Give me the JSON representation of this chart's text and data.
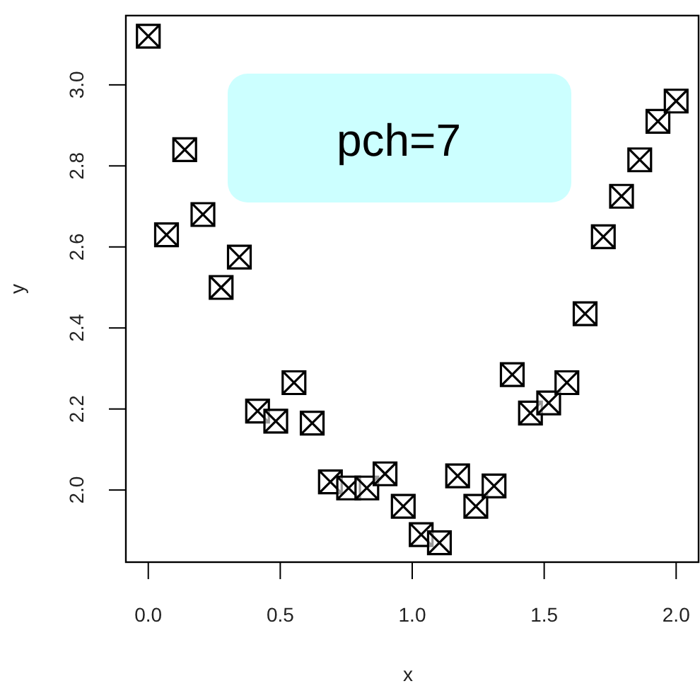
{
  "chart_data": {
    "type": "scatter",
    "xlabel": "x",
    "ylabel": "y",
    "annotations": [
      "pch=7"
    ],
    "x": [
      0,
      0.069,
      0.138,
      0.207,
      0.276,
      0.345,
      0.414,
      0.483,
      0.552,
      0.621,
      0.69,
      0.759,
      0.828,
      0.897,
      0.966,
      1.034,
      1.103,
      1.172,
      1.241,
      1.31,
      1.379,
      1.448,
      1.517,
      1.586,
      1.655,
      1.724,
      1.793,
      1.862,
      1.931,
      2.0
    ],
    "series": [
      {
        "color": "#000000",
        "values": [
          3.12,
          2.63,
          2.84,
          2.68,
          2.5,
          2.575,
          2.195,
          2.17,
          2.265,
          2.165,
          2.02,
          2.005,
          2.005,
          2.04,
          1.96,
          1.89,
          1.87,
          2.035,
          1.96,
          2.01,
          2.285,
          2.19,
          2.215,
          2.265,
          2.435,
          2.625,
          2.725,
          2.815,
          2.91,
          2.96
        ]
      }
    ],
    "xlim": [
      -0.085,
      2.085
    ],
    "ylim": [
      1.822,
      3.171
    ],
    "xticks": [
      {
        "value": 0,
        "label": "0.0"
      },
      0.5,
      {
        "value": 1,
        "label": "1.0"
      },
      1.5,
      {
        "value": 2,
        "label": "2.0"
      }
    ],
    "yticks": [
      {
        "value": 2,
        "label": "2.0"
      },
      2.2,
      2.4,
      2.6,
      2.8,
      {
        "value": 3,
        "label": "3.0"
      }
    ],
    "grid": false,
    "marker": "cross"
  }
}
